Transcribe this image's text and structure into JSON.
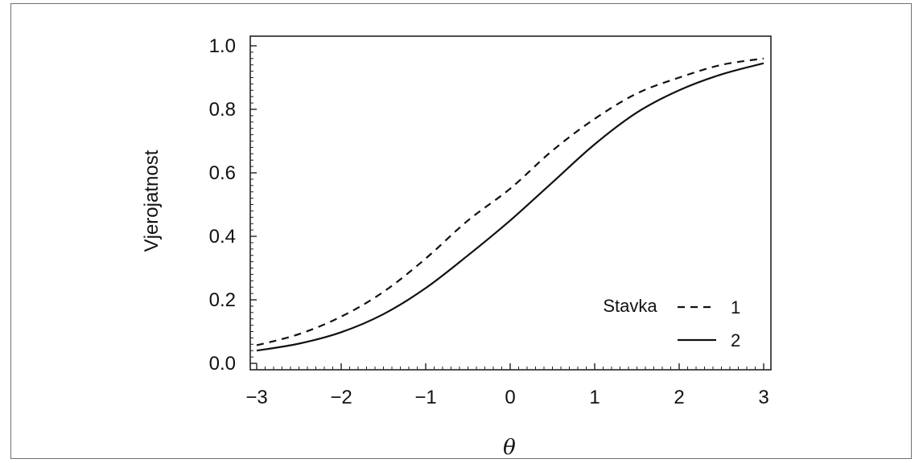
{
  "chart_data": {
    "type": "line",
    "xlabel": "θ",
    "ylabel": "Vjerojatnost",
    "xlim": [
      -3,
      3
    ],
    "ylim": [
      0,
      1
    ],
    "xticks": [
      "−3",
      "−2",
      "−1",
      "0",
      "1",
      "2",
      "3"
    ],
    "yticks": [
      "0.0",
      "0.2",
      "0.4",
      "0.6",
      "0.8",
      "1.0"
    ],
    "legend": {
      "title": "Stavka",
      "placement": "bottom-right"
    },
    "grid": false,
    "x": [
      -3,
      -2.5,
      -2,
      -1.5,
      -1,
      -0.5,
      0,
      0.5,
      1,
      1.5,
      2,
      2.5,
      3
    ],
    "series": [
      {
        "name": "1",
        "style": "dashed",
        "values": [
          0.057,
          0.092,
          0.147,
          0.225,
          0.33,
          0.45,
          0.55,
          0.67,
          0.77,
          0.85,
          0.9,
          0.94,
          0.96
        ]
      },
      {
        "name": "2",
        "style": "solid",
        "values": [
          0.04,
          0.062,
          0.098,
          0.155,
          0.237,
          0.34,
          0.45,
          0.57,
          0.69,
          0.79,
          0.86,
          0.91,
          0.945
        ]
      }
    ],
    "colors": {
      "line": "#111111",
      "axis": "#222222"
    }
  }
}
